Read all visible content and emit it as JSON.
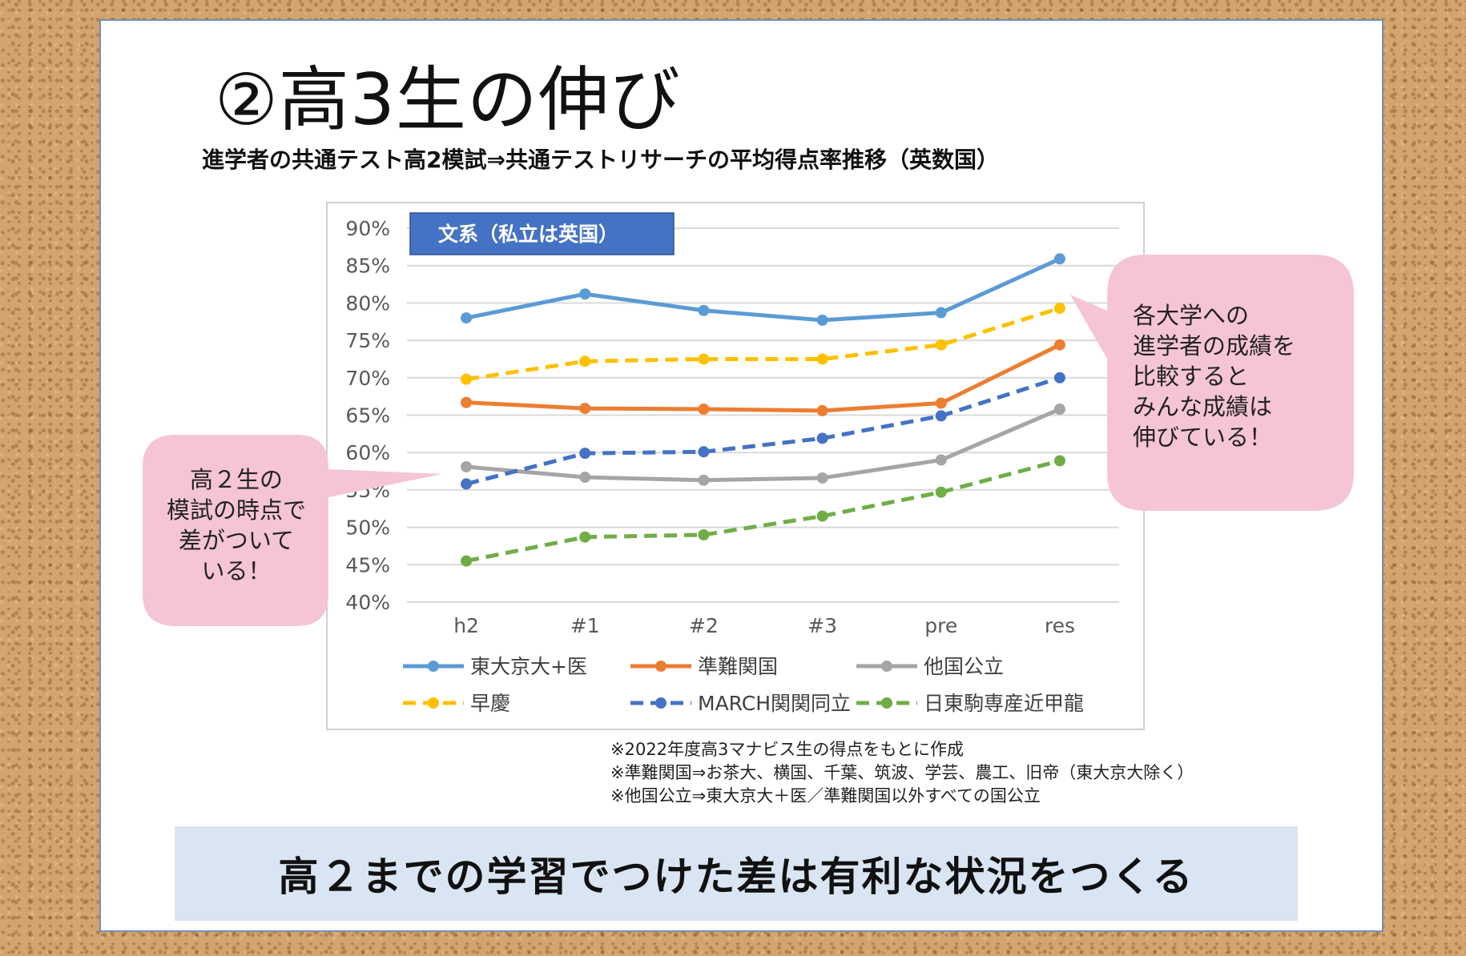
{
  "title": "②高3生の伸び",
  "subtitle": "進学者の共通テスト高2模試⇒共通テストリサーチの平均得点率推移（英数国）",
  "chart_data": {
    "type": "line",
    "label_box": "文系（私立は英国）",
    "categories": [
      "h2",
      "#1",
      "#2",
      "#3",
      "pre",
      "res"
    ],
    "ylim": [
      40,
      90
    ],
    "yticks": [
      "40%",
      "45%",
      "50%",
      "55%",
      "60%",
      "65%",
      "70%",
      "75%",
      "80%",
      "85%",
      "90%"
    ],
    "y_unit": "%",
    "grid": true,
    "legend_position": "bottom",
    "series": [
      {
        "name": "東大京大+医",
        "color": "#5b9bd5",
        "dashed": false,
        "values": [
          78.0,
          81.2,
          79.0,
          77.7,
          78.7,
          85.9
        ]
      },
      {
        "name": "準難関国",
        "color": "#ed7d31",
        "dashed": false,
        "values": [
          66.7,
          65.9,
          65.8,
          65.6,
          66.6,
          74.4
        ]
      },
      {
        "name": "他国公立",
        "color": "#a5a5a5",
        "dashed": false,
        "values": [
          58.1,
          56.7,
          56.3,
          56.6,
          59.0,
          65.8
        ]
      },
      {
        "name": "早慶",
        "color": "#ffc000",
        "dashed": true,
        "values": [
          69.8,
          72.2,
          72.5,
          72.5,
          74.4,
          79.3
        ]
      },
      {
        "name": "MARCH関関同立",
        "color": "#4472c4",
        "dashed": true,
        "values": [
          55.8,
          59.9,
          60.1,
          61.9,
          64.9,
          70.0
        ]
      },
      {
        "name": "日東駒専産近甲龍",
        "color": "#70ad47",
        "dashed": true,
        "values": [
          45.5,
          48.7,
          49.0,
          51.5,
          54.7,
          58.9
        ]
      }
    ]
  },
  "notes": [
    "※2022年度高3マナビス生の得点をもとに作成",
    "※準難関国⇒お茶大、横国、千葉、筑波、学芸、農工、旧帝（東大京大除く）",
    "※他国公立⇒東大京大＋医／準難関国以外すべての国公立"
  ],
  "callouts": {
    "left": "高２生の\n模試の時点で\n差がついて\nいる！",
    "right": "各大学への\n進学者の成績を\n比較すると\nみんな成績は\n伸びている！"
  },
  "banner": "高２までの学習でつけた差は有利な状況をつくる"
}
